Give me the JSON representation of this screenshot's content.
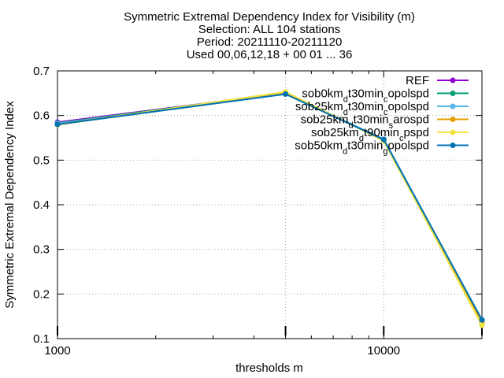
{
  "chart_data": {
    "type": "line",
    "title_lines": [
      "Symmetric Extremal Dependency Index  for Visibility (m)",
      "Selection: ALL    104 stations",
      "Period: 20211110-20211120",
      "Used 00,06,12,18 + 00 01 ... 36"
    ],
    "xlabel": "thresholds m",
    "ylabel": "Symmetric Extremal Dependency Index",
    "x_scale": "log",
    "xlim": [
      1000,
      20000
    ],
    "ylim": [
      0.1,
      0.7
    ],
    "x_ticks": [
      1000,
      10000
    ],
    "x_tick_labels": [
      "1000",
      "10000"
    ],
    "y_ticks": [
      0.1,
      0.2,
      0.3,
      0.4,
      0.5,
      0.6,
      0.7
    ],
    "y_tick_labels": [
      "0.1",
      "0.2",
      "0.3",
      "0.4",
      "0.5",
      "0.6",
      "0.7"
    ],
    "grid": true,
    "legend_position": "top-right",
    "x": [
      1000,
      5000,
      10000,
      20000
    ],
    "series": [
      {
        "name": "REF",
        "color": "#9400d3",
        "values": [
          0.585,
          0.65,
          0.545,
          0.14
        ]
      },
      {
        "name": "sob0km_dt30min_copolspd",
        "label_parts": [
          [
            "sob0km",
            ""
          ],
          [
            "d",
            "sub"
          ],
          [
            "t30min",
            ""
          ],
          [
            "c",
            "sub"
          ],
          [
            "opolspd",
            ""
          ]
        ],
        "color": "#009e73",
        "values": [
          0.583,
          0.651,
          0.546,
          0.142
        ]
      },
      {
        "name": "sob25km_dt30min_copolspd",
        "label_parts": [
          [
            "sob25km",
            ""
          ],
          [
            "d",
            "sub"
          ],
          [
            "t30min",
            ""
          ],
          [
            "c",
            "sub"
          ],
          [
            "opolspd",
            ""
          ]
        ],
        "color": "#56b4e9",
        "values": [
          0.582,
          0.649,
          0.547,
          0.141
        ]
      },
      {
        "name": "sob25km_dt30min_sarospd",
        "label_parts": [
          [
            "sob25km",
            ""
          ],
          [
            "d",
            "sub"
          ],
          [
            "t30min",
            ""
          ],
          [
            "s",
            "sub"
          ],
          [
            "arospd",
            ""
          ]
        ],
        "color": "#e69f00",
        "values": [
          0.58,
          0.652,
          0.544,
          0.135
        ]
      },
      {
        "name": "sob25km_dt90min_cpspd",
        "label_parts": [
          [
            "sob25km",
            ""
          ],
          [
            "d",
            "sub"
          ],
          [
            "t90min",
            ""
          ],
          [
            "c",
            "sub"
          ],
          [
            "pspd",
            ""
          ]
        ],
        "color": "#f0e442",
        "values": [
          0.579,
          0.653,
          0.543,
          0.13
        ]
      },
      {
        "name": "sob50km_dt30min_gopolspd",
        "label_parts": [
          [
            "sob50km",
            ""
          ],
          [
            "d",
            "sub"
          ],
          [
            "t30min",
            ""
          ],
          [
            "g",
            "sub"
          ],
          [
            "opolspd",
            ""
          ]
        ],
        "color": "#0072b2",
        "values": [
          0.58,
          0.648,
          0.546,
          0.142
        ]
      }
    ]
  }
}
